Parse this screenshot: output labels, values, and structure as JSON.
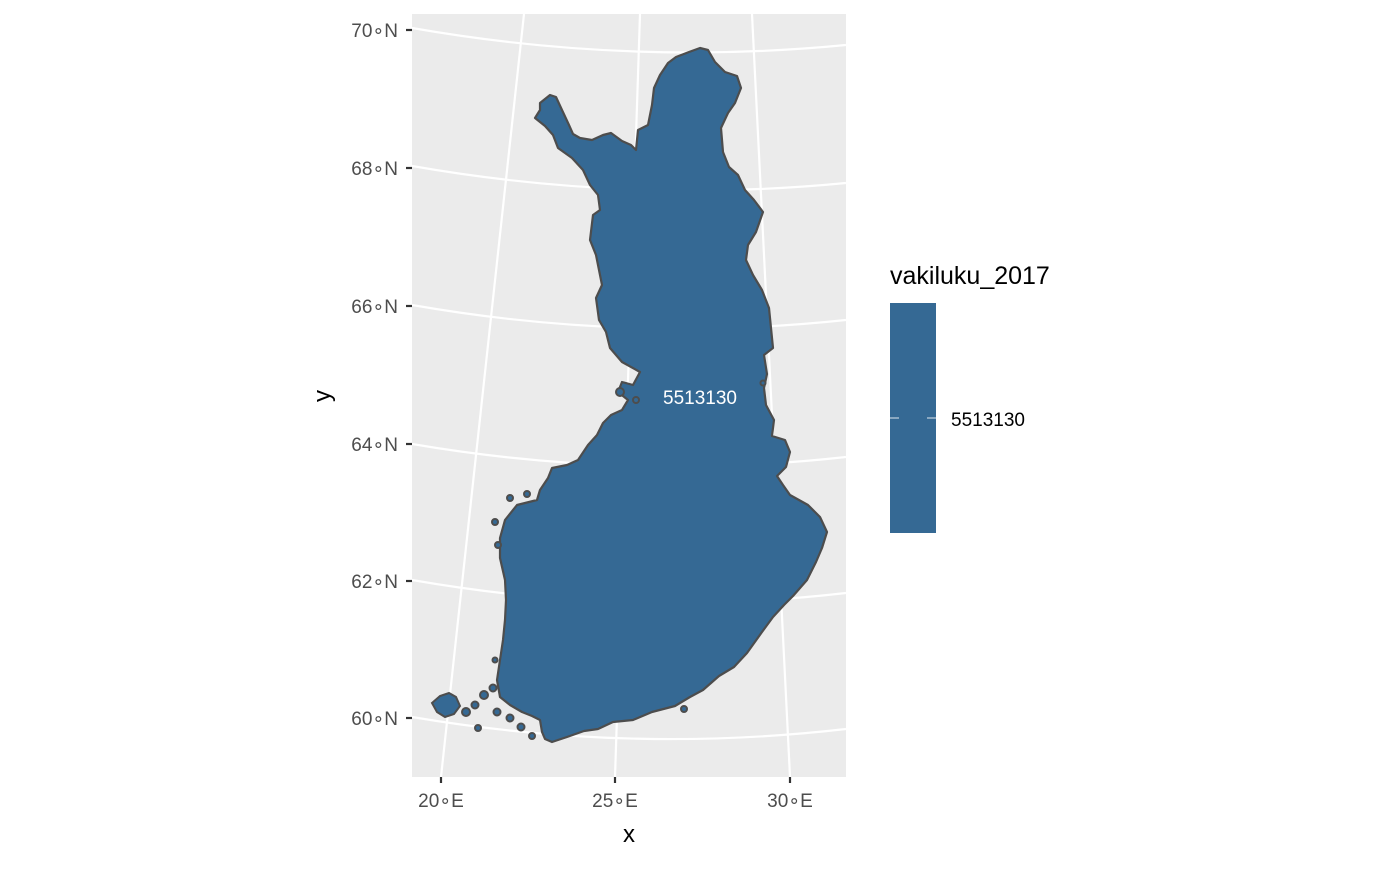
{
  "map": {
    "fill_color": "#356994",
    "border_color": "#4d4d4d",
    "panel_background": "#ebebeb",
    "graticule_color": "#ffffff",
    "region_label": "5513130",
    "latitude_ticks": [
      "70∘N",
      "68∘N",
      "66∘N",
      "64∘N",
      "62∘N",
      "60∘N"
    ],
    "longitude_ticks": [
      "20∘E",
      "25∘E",
      "30∘E"
    ],
    "xlabel": "x",
    "ylabel": "y"
  },
  "legend": {
    "title": "vakiluku_2017",
    "label": "5513130",
    "color": "#356994"
  }
}
